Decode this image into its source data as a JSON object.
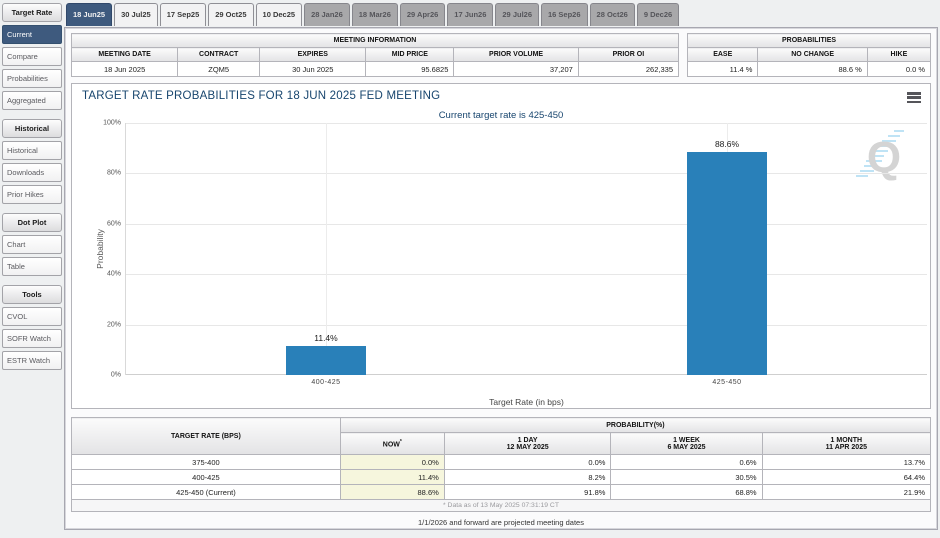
{
  "colors": {
    "accent": "#3e5a7e",
    "bar": "#2980b9",
    "title_blue": "#17456e",
    "now_highlight": "#f6f6dd"
  },
  "sidebar": {
    "sections": [
      {
        "title": "Target Rate",
        "items": [
          "Current",
          "Compare",
          "Probabilities",
          "Aggregated"
        ]
      },
      {
        "title": "Historical",
        "items": [
          "Historical",
          "Downloads",
          "Prior Hikes"
        ]
      },
      {
        "title": "Dot Plot",
        "items": [
          "Chart",
          "Table"
        ]
      },
      {
        "title": "Tools",
        "items": [
          "CVOL",
          "SOFR Watch",
          "ESTR Watch"
        ]
      }
    ],
    "active_item": "Current"
  },
  "tabs": [
    {
      "label": "18 Jun25",
      "state": "active"
    },
    {
      "label": "30 Jul25",
      "state": "near"
    },
    {
      "label": "17 Sep25",
      "state": "near"
    },
    {
      "label": "29 Oct25",
      "state": "near"
    },
    {
      "label": "10 Dec25",
      "state": "near"
    },
    {
      "label": "28 Jan26",
      "state": "far"
    },
    {
      "label": "18 Mar26",
      "state": "far"
    },
    {
      "label": "29 Apr26",
      "state": "far"
    },
    {
      "label": "17 Jun26",
      "state": "far"
    },
    {
      "label": "29 Jul26",
      "state": "far"
    },
    {
      "label": "16 Sep26",
      "state": "far"
    },
    {
      "label": "28 Oct26",
      "state": "far"
    },
    {
      "label": "9 Dec26",
      "state": "far"
    }
  ],
  "meeting_info": {
    "title": "MEETING INFORMATION",
    "headers": [
      "MEETING DATE",
      "CONTRACT",
      "EXPIRES",
      "MID PRICE",
      "PRIOR VOLUME",
      "PRIOR OI"
    ],
    "values": [
      "18 Jun 2025",
      "ZQM5",
      "30 Jun 2025",
      "95.6825",
      "37,207",
      "262,335"
    ]
  },
  "probabilities_box": {
    "title": "PROBABILITIES",
    "headers": [
      "EASE",
      "NO CHANGE",
      "HIKE"
    ],
    "values": [
      "11.4 %",
      "88.6 %",
      "0.0 %"
    ]
  },
  "chart": {
    "title": "TARGET RATE PROBABILITIES FOR 18 JUN 2025 FED MEETING",
    "subtitle": "Current target rate is 425-450",
    "ylabel": "Probability",
    "xlabel": "Target Rate (in bps)",
    "yticks": [
      "100%",
      "80%",
      "60%",
      "40%",
      "20%",
      "0%"
    ],
    "menu_icon": "hamburger-menu",
    "watermark": "Q"
  },
  "chart_data": {
    "type": "bar",
    "categories": [
      "400-425",
      "425-450"
    ],
    "values": [
      11.4,
      88.6
    ],
    "value_labels": [
      "11.4%",
      "88.6%"
    ],
    "title": "TARGET RATE PROBABILITIES FOR 18 JUN 2025 FED MEETING",
    "xlabel": "Target Rate (in bps)",
    "ylabel": "Probability",
    "ylim": [
      0,
      100
    ],
    "grid": true,
    "bar_color": "#2980b9"
  },
  "prob_table": {
    "col1_header": "TARGET RATE (BPS)",
    "group_header": "PROBABILITY(%)",
    "footnote_marker": "*",
    "columns": [
      {
        "label": "NOW",
        "sub": ""
      },
      {
        "label": "1 DAY",
        "sub": "12 MAY 2025"
      },
      {
        "label": "1 WEEK",
        "sub": "6 MAY 2025"
      },
      {
        "label": "1 MONTH",
        "sub": "11 APR 2025"
      }
    ],
    "rows": [
      {
        "range": "375-400",
        "now": "0.0%",
        "d1": "0.0%",
        "w1": "0.6%",
        "m1": "13.7%"
      },
      {
        "range": "400-425",
        "now": "11.4%",
        "d1": "8.2%",
        "w1": "30.5%",
        "m1": "64.4%"
      },
      {
        "range": "425-450 (Current)",
        "now": "88.6%",
        "d1": "91.8%",
        "w1": "68.8%",
        "m1": "21.9%"
      }
    ],
    "footnote": "* Data as of 13 May 2025 07:31:19 CT"
  },
  "footer": "1/1/2026 and forward are projected meeting dates"
}
